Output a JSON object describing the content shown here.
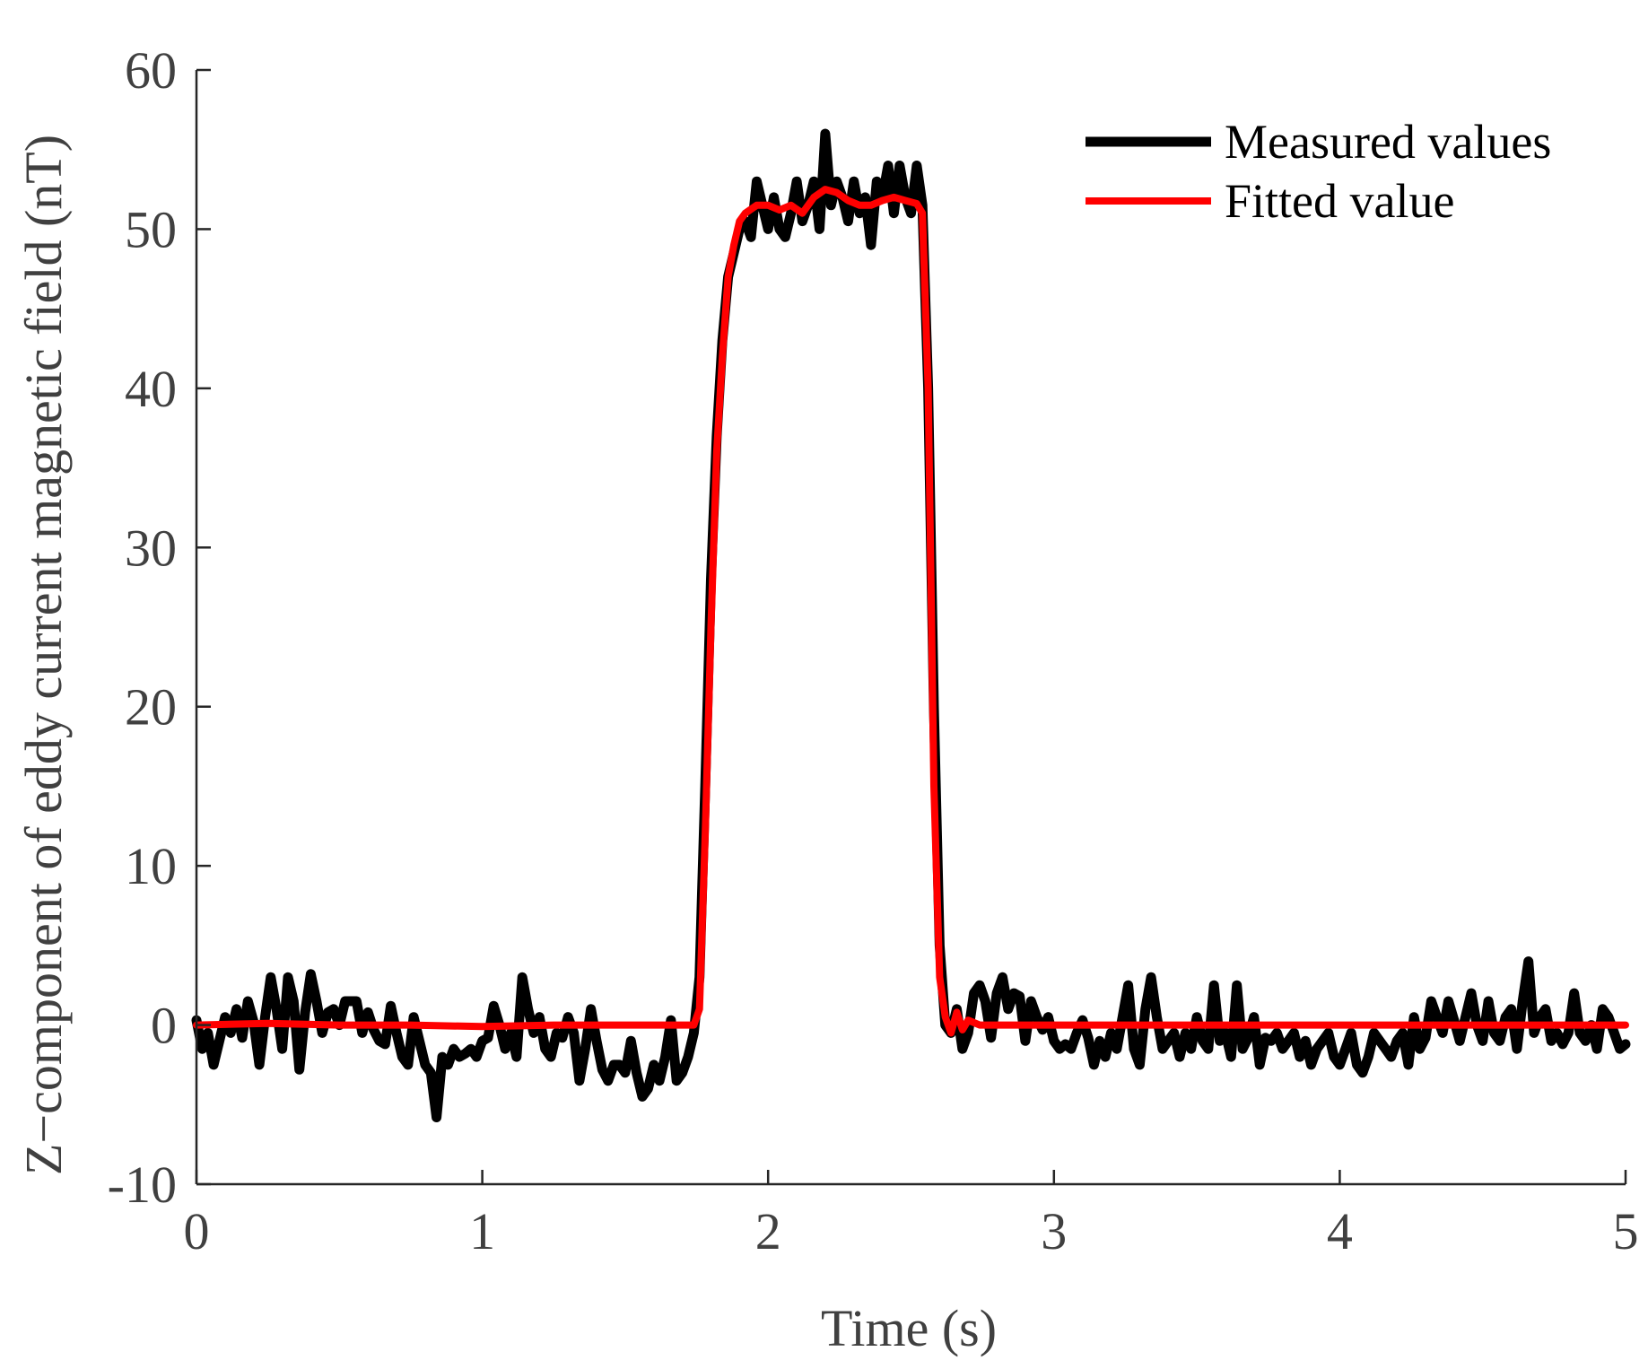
{
  "chart_data": {
    "type": "line",
    "title": "",
    "xlabel": "Time (s)",
    "ylabel": "Z−component of eddy current magnetic field (nT)",
    "xlim": [
      0,
      5
    ],
    "ylim": [
      -10,
      60
    ],
    "xticks": [
      0,
      1,
      2,
      3,
      4,
      5
    ],
    "xtick_labels": [
      "0",
      "1",
      "2",
      "3",
      "4",
      "5"
    ],
    "yticks": [
      -10,
      0,
      10,
      20,
      30,
      40,
      50,
      60
    ],
    "ytick_labels": [
      "-10",
      "0",
      "10",
      "20",
      "30",
      "40",
      "50",
      "60"
    ],
    "grid": false,
    "legend_position": "top-right",
    "series": [
      {
        "name": "Measured values",
        "color": "#000000",
        "points": [
          [
            0.0,
            0.3
          ],
          [
            0.02,
            -1.5
          ],
          [
            0.04,
            -0.5
          ],
          [
            0.06,
            -2.5
          ],
          [
            0.08,
            -1.0
          ],
          [
            0.1,
            0.5
          ],
          [
            0.12,
            -0.5
          ],
          [
            0.14,
            1.0
          ],
          [
            0.16,
            -0.8
          ],
          [
            0.18,
            1.5
          ],
          [
            0.2,
            0.2
          ],
          [
            0.22,
            -2.5
          ],
          [
            0.24,
            0.5
          ],
          [
            0.26,
            3.0
          ],
          [
            0.28,
            1.0
          ],
          [
            0.3,
            -1.5
          ],
          [
            0.32,
            3.0
          ],
          [
            0.34,
            1.5
          ],
          [
            0.36,
            -2.8
          ],
          [
            0.38,
            0.8
          ],
          [
            0.4,
            3.2
          ],
          [
            0.42,
            1.5
          ],
          [
            0.44,
            -0.5
          ],
          [
            0.46,
            0.8
          ],
          [
            0.48,
            1.0
          ],
          [
            0.5,
            0.0
          ],
          [
            0.52,
            1.5
          ],
          [
            0.54,
            1.5
          ],
          [
            0.56,
            1.5
          ],
          [
            0.58,
            -0.5
          ],
          [
            0.6,
            0.8
          ],
          [
            0.62,
            -0.3
          ],
          [
            0.64,
            -1.0
          ],
          [
            0.66,
            -1.2
          ],
          [
            0.68,
            1.2
          ],
          [
            0.7,
            -0.5
          ],
          [
            0.72,
            -2.0
          ],
          [
            0.74,
            -2.5
          ],
          [
            0.76,
            0.5
          ],
          [
            0.78,
            -1.0
          ],
          [
            0.8,
            -2.5
          ],
          [
            0.82,
            -3.0
          ],
          [
            0.84,
            -5.8
          ],
          [
            0.86,
            -2.0
          ],
          [
            0.88,
            -2.5
          ],
          [
            0.9,
            -1.5
          ],
          [
            0.92,
            -2.0
          ],
          [
            0.94,
            -1.8
          ],
          [
            0.96,
            -1.5
          ],
          [
            0.98,
            -2.0
          ],
          [
            1.0,
            -1.0
          ],
          [
            1.02,
            -0.8
          ],
          [
            1.04,
            1.2
          ],
          [
            1.06,
            0.0
          ],
          [
            1.08,
            -1.5
          ],
          [
            1.1,
            -0.5
          ],
          [
            1.12,
            -2.0
          ],
          [
            1.14,
            3.0
          ],
          [
            1.16,
            1.0
          ],
          [
            1.18,
            -0.5
          ],
          [
            1.2,
            0.5
          ],
          [
            1.22,
            -1.5
          ],
          [
            1.24,
            -2.0
          ],
          [
            1.26,
            -0.5
          ],
          [
            1.28,
            -0.8
          ],
          [
            1.3,
            0.5
          ],
          [
            1.32,
            -0.5
          ],
          [
            1.34,
            -3.5
          ],
          [
            1.36,
            -1.5
          ],
          [
            1.38,
            1.0
          ],
          [
            1.4,
            -1.0
          ],
          [
            1.42,
            -2.8
          ],
          [
            1.44,
            -3.5
          ],
          [
            1.46,
            -2.5
          ],
          [
            1.48,
            -2.5
          ],
          [
            1.5,
            -3.0
          ],
          [
            1.52,
            -1.0
          ],
          [
            1.54,
            -3.0
          ],
          [
            1.56,
            -4.5
          ],
          [
            1.58,
            -4.0
          ],
          [
            1.6,
            -2.5
          ],
          [
            1.62,
            -3.5
          ],
          [
            1.64,
            -2.0
          ],
          [
            1.66,
            0.3
          ],
          [
            1.68,
            -3.5
          ],
          [
            1.7,
            -3.0
          ],
          [
            1.72,
            -2.0
          ],
          [
            1.74,
            -0.5
          ],
          [
            1.76,
            3.0
          ],
          [
            1.78,
            15.0
          ],
          [
            1.8,
            28.0
          ],
          [
            1.82,
            37.0
          ],
          [
            1.84,
            43.0
          ],
          [
            1.86,
            47.0
          ],
          [
            1.88,
            48.5
          ],
          [
            1.9,
            50.0
          ],
          [
            1.92,
            50.5
          ],
          [
            1.94,
            49.5
          ],
          [
            1.96,
            53.0
          ],
          [
            1.98,
            51.5
          ],
          [
            2.0,
            50.0
          ],
          [
            2.02,
            52.0
          ],
          [
            2.04,
            50.0
          ],
          [
            2.06,
            49.5
          ],
          [
            2.08,
            51.0
          ],
          [
            2.1,
            53.0
          ],
          [
            2.12,
            50.5
          ],
          [
            2.14,
            51.5
          ],
          [
            2.16,
            53.0
          ],
          [
            2.18,
            50.0
          ],
          [
            2.2,
            56.0
          ],
          [
            2.22,
            51.5
          ],
          [
            2.24,
            53.0
          ],
          [
            2.26,
            52.0
          ],
          [
            2.28,
            50.5
          ],
          [
            2.3,
            53.0
          ],
          [
            2.32,
            51.0
          ],
          [
            2.34,
            52.0
          ],
          [
            2.36,
            49.0
          ],
          [
            2.38,
            53.0
          ],
          [
            2.4,
            52.0
          ],
          [
            2.42,
            54.0
          ],
          [
            2.44,
            51.0
          ],
          [
            2.46,
            54.0
          ],
          [
            2.48,
            52.0
          ],
          [
            2.5,
            51.0
          ],
          [
            2.52,
            54.0
          ],
          [
            2.54,
            51.5
          ],
          [
            2.56,
            40.0
          ],
          [
            2.58,
            20.0
          ],
          [
            2.6,
            5.0
          ],
          [
            2.62,
            0.0
          ],
          [
            2.64,
            -0.5
          ],
          [
            2.66,
            1.0
          ],
          [
            2.68,
            -1.5
          ],
          [
            2.7,
            -0.5
          ],
          [
            2.72,
            2.0
          ],
          [
            2.74,
            2.5
          ],
          [
            2.76,
            1.5
          ],
          [
            2.78,
            -0.8
          ],
          [
            2.8,
            2.0
          ],
          [
            2.82,
            3.0
          ],
          [
            2.84,
            1.0
          ],
          [
            2.86,
            2.0
          ],
          [
            2.88,
            1.8
          ],
          [
            2.9,
            -1.0
          ],
          [
            2.92,
            1.5
          ],
          [
            2.94,
            0.5
          ],
          [
            2.96,
            -0.3
          ],
          [
            2.98,
            0.5
          ],
          [
            3.0,
            -1.0
          ],
          [
            3.02,
            -1.5
          ],
          [
            3.04,
            -1.2
          ],
          [
            3.06,
            -1.5
          ],
          [
            3.08,
            -0.5
          ],
          [
            3.1,
            0.3
          ],
          [
            3.12,
            -0.8
          ],
          [
            3.14,
            -2.5
          ],
          [
            3.16,
            -1.0
          ],
          [
            3.18,
            -2.0
          ],
          [
            3.2,
            -0.5
          ],
          [
            3.22,
            -1.5
          ],
          [
            3.24,
            0.5
          ],
          [
            3.26,
            2.5
          ],
          [
            3.28,
            -1.5
          ],
          [
            3.3,
            -2.5
          ],
          [
            3.32,
            1.0
          ],
          [
            3.34,
            3.0
          ],
          [
            3.36,
            0.5
          ],
          [
            3.38,
            -1.5
          ],
          [
            3.4,
            -1.0
          ],
          [
            3.42,
            -0.5
          ],
          [
            3.44,
            -2.0
          ],
          [
            3.46,
            -0.5
          ],
          [
            3.48,
            -1.5
          ],
          [
            3.5,
            0.5
          ],
          [
            3.52,
            -1.0
          ],
          [
            3.54,
            -1.5
          ],
          [
            3.56,
            2.5
          ],
          [
            3.58,
            -1.0
          ],
          [
            3.6,
            -0.5
          ],
          [
            3.62,
            -2.0
          ],
          [
            3.64,
            2.5
          ],
          [
            3.66,
            -1.5
          ],
          [
            3.68,
            -0.8
          ],
          [
            3.7,
            0.5
          ],
          [
            3.72,
            -2.5
          ],
          [
            3.74,
            -0.8
          ],
          [
            3.76,
            -1.0
          ],
          [
            3.78,
            -0.5
          ],
          [
            3.8,
            -1.5
          ],
          [
            3.82,
            -1.0
          ],
          [
            3.84,
            -0.5
          ],
          [
            3.86,
            -2.0
          ],
          [
            3.88,
            -1.0
          ],
          [
            3.9,
            -2.5
          ],
          [
            3.92,
            -1.5
          ],
          [
            3.94,
            -1.0
          ],
          [
            3.96,
            -0.5
          ],
          [
            3.98,
            -2.0
          ],
          [
            4.0,
            -2.5
          ],
          [
            4.02,
            -1.5
          ],
          [
            4.04,
            -0.5
          ],
          [
            4.06,
            -2.5
          ],
          [
            4.08,
            -3.0
          ],
          [
            4.1,
            -2.0
          ],
          [
            4.12,
            -0.5
          ],
          [
            4.14,
            -1.0
          ],
          [
            4.16,
            -1.5
          ],
          [
            4.18,
            -2.0
          ],
          [
            4.2,
            -1.0
          ],
          [
            4.22,
            -0.5
          ],
          [
            4.24,
            -2.5
          ],
          [
            4.26,
            0.5
          ],
          [
            4.28,
            -1.5
          ],
          [
            4.3,
            -0.8
          ],
          [
            4.32,
            1.5
          ],
          [
            4.34,
            0.5
          ],
          [
            4.36,
            -0.5
          ],
          [
            4.38,
            1.5
          ],
          [
            4.4,
            0.3
          ],
          [
            4.42,
            -1.0
          ],
          [
            4.44,
            0.5
          ],
          [
            4.46,
            2.0
          ],
          [
            4.48,
            0.0
          ],
          [
            4.5,
            -1.0
          ],
          [
            4.52,
            1.5
          ],
          [
            4.54,
            -0.5
          ],
          [
            4.56,
            -1.0
          ],
          [
            4.58,
            0.5
          ],
          [
            4.6,
            1.0
          ],
          [
            4.62,
            -1.5
          ],
          [
            4.64,
            1.5
          ],
          [
            4.66,
            4.0
          ],
          [
            4.68,
            -0.5
          ],
          [
            4.7,
            0.5
          ],
          [
            4.72,
            1.0
          ],
          [
            4.74,
            -1.0
          ],
          [
            4.76,
            -0.5
          ],
          [
            4.78,
            -1.2
          ],
          [
            4.8,
            -0.5
          ],
          [
            4.82,
            2.0
          ],
          [
            4.84,
            -0.5
          ],
          [
            4.86,
            -1.0
          ],
          [
            4.88,
            0.0
          ],
          [
            4.9,
            -1.5
          ],
          [
            4.92,
            1.0
          ],
          [
            4.94,
            0.5
          ],
          [
            4.96,
            -0.5
          ],
          [
            4.98,
            -1.5
          ],
          [
            5.0,
            -1.2
          ]
        ]
      },
      {
        "name": "Fitted value",
        "color": "#ff0000",
        "points": [
          [
            0.0,
            0.0
          ],
          [
            0.25,
            0.1
          ],
          [
            0.5,
            0.0
          ],
          [
            0.75,
            0.0
          ],
          [
            1.0,
            -0.1
          ],
          [
            1.25,
            0.0
          ],
          [
            1.5,
            0.0
          ],
          [
            1.74,
            0.0
          ],
          [
            1.76,
            1.0
          ],
          [
            1.78,
            12.0
          ],
          [
            1.8,
            25.0
          ],
          [
            1.82,
            36.0
          ],
          [
            1.84,
            42.0
          ],
          [
            1.86,
            47.0
          ],
          [
            1.88,
            49.0
          ],
          [
            1.9,
            50.5
          ],
          [
            1.92,
            51.0
          ],
          [
            1.96,
            51.5
          ],
          [
            2.0,
            51.5
          ],
          [
            2.04,
            51.2
          ],
          [
            2.08,
            51.5
          ],
          [
            2.12,
            51.0
          ],
          [
            2.16,
            52.0
          ],
          [
            2.2,
            52.5
          ],
          [
            2.24,
            52.3
          ],
          [
            2.28,
            51.8
          ],
          [
            2.32,
            51.5
          ],
          [
            2.36,
            51.5
          ],
          [
            2.4,
            51.8
          ],
          [
            2.44,
            52.0
          ],
          [
            2.48,
            51.8
          ],
          [
            2.52,
            51.6
          ],
          [
            2.54,
            51.0
          ],
          [
            2.56,
            40.0
          ],
          [
            2.58,
            15.0
          ],
          [
            2.6,
            3.0
          ],
          [
            2.62,
            0.5
          ],
          [
            2.64,
            -0.5
          ],
          [
            2.66,
            0.8
          ],
          [
            2.68,
            -0.3
          ],
          [
            2.7,
            0.3
          ],
          [
            2.74,
            0.0
          ],
          [
            3.0,
            0.0
          ],
          [
            3.5,
            0.0
          ],
          [
            4.0,
            0.0
          ],
          [
            4.5,
            0.0
          ],
          [
            5.0,
            0.0
          ]
        ]
      }
    ]
  }
}
